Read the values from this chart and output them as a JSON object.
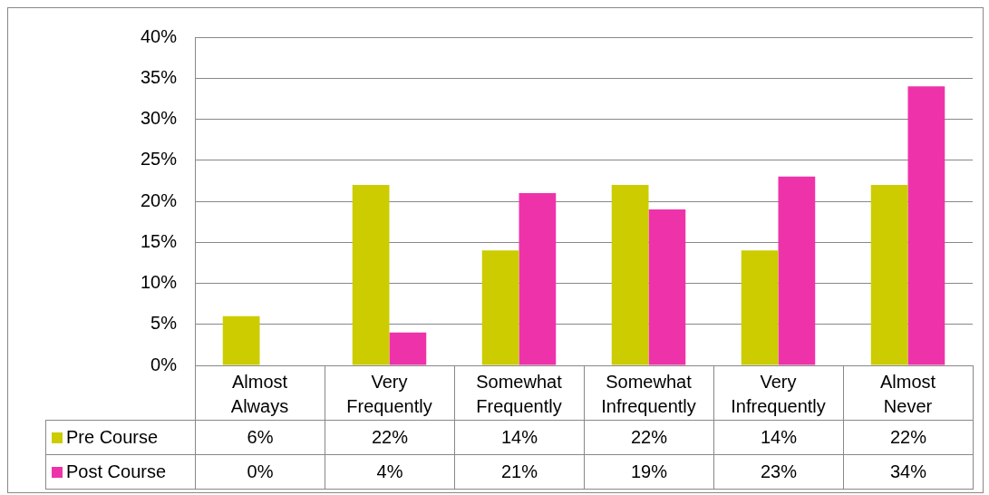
{
  "chart_data": {
    "type": "bar",
    "categories": [
      "Almost Always",
      "Very Frequently",
      "Somewhat Frequently",
      "Somewhat Infrequently",
      "Very Infrequently",
      "Almost Never"
    ],
    "series": [
      {
        "name": "Pre Course",
        "color": "#cccc00",
        "values": [
          6,
          22,
          14,
          22,
          14,
          22
        ],
        "value_labels": [
          "6%",
          "22%",
          "14%",
          "22%",
          "14%",
          "22%"
        ]
      },
      {
        "name": "Post Course",
        "color": "#ee33aa",
        "values": [
          0,
          4,
          21,
          19,
          23,
          34
        ],
        "value_labels": [
          "0%",
          "4%",
          "21%",
          "19%",
          "23%",
          "34%"
        ]
      }
    ],
    "ylim": [
      0,
      40
    ],
    "yticks": [
      {
        "value": 0,
        "label": "0%"
      },
      {
        "value": 5,
        "label": "5%"
      },
      {
        "value": 10,
        "label": "10%"
      },
      {
        "value": 15,
        "label": "15%"
      },
      {
        "value": 20,
        "label": "20%"
      },
      {
        "value": 25,
        "label": "25%"
      },
      {
        "value": 30,
        "label": "30%"
      },
      {
        "value": 35,
        "label": "35%"
      },
      {
        "value": 40,
        "label": "40%"
      }
    ],
    "grid": "y",
    "legend": "bottom"
  }
}
